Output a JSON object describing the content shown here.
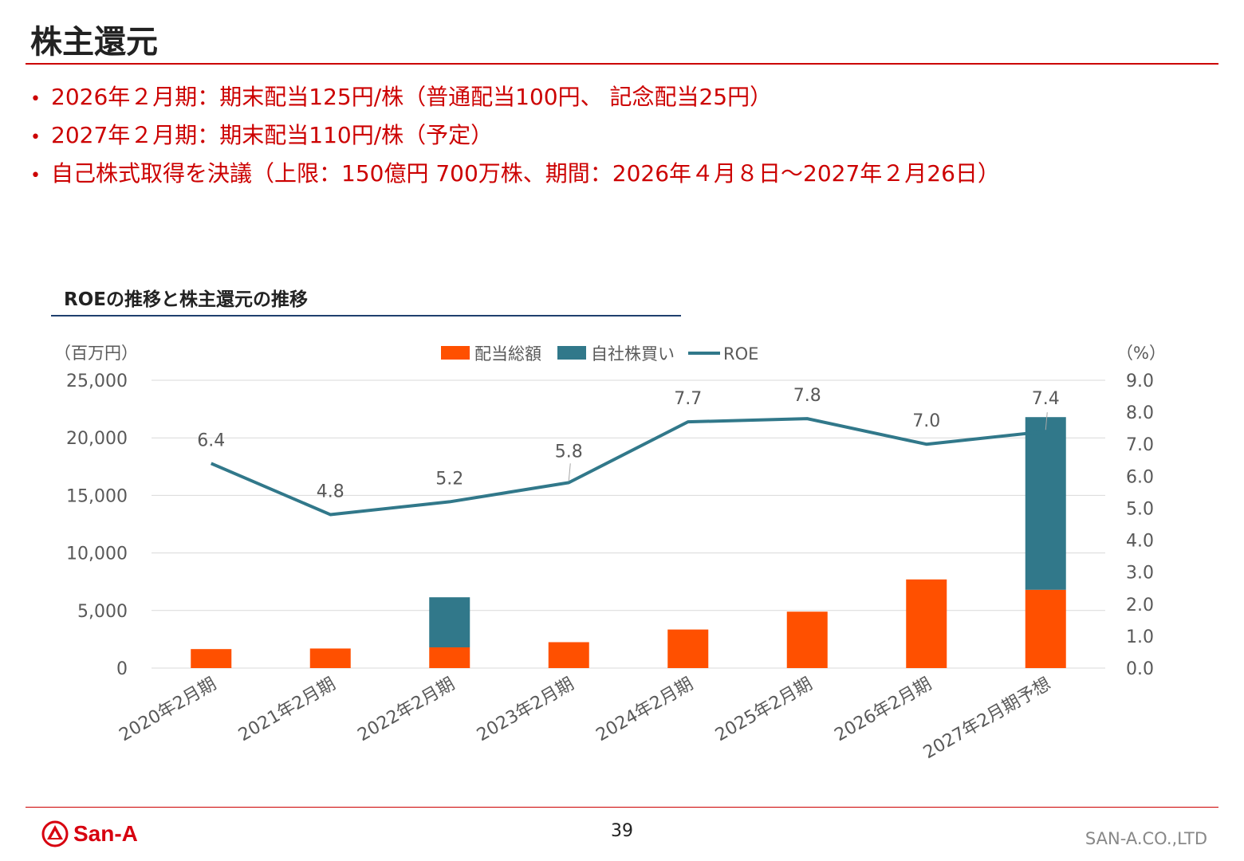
{
  "page": {
    "title": "株主還元",
    "bullets": [
      "2026年２月期：期末配当125円/株（普通配当100円、 記念配当25円）",
      "2027年２月期：期末配当110円/株（予定）",
      "自己株式取得を決議（上限：150億円 700万株、期間：2026年４月８日～2027年２月26日）"
    ],
    "bullet_symbol": "•",
    "page_number": "39",
    "company": "SAN-A.CO.,LTD",
    "logo_text": "San-A"
  },
  "colors": {
    "accent_red": "#cc0000",
    "dividend": "#ff5000",
    "buyback": "#31788a",
    "roe": "#31788a",
    "title_rule": "#1f3f6e"
  },
  "chart_data": {
    "type": "bar",
    "title": "ROEの推移と株主還元の推移",
    "left_unit": "（百万円）",
    "right_unit": "（%）",
    "categories": [
      "2020年2月期",
      "2021年2月期",
      "2022年2月期",
      "2023年2月期",
      "2024年2月期",
      "2025年2月期",
      "2026年2月期",
      "2027年2月期予想"
    ],
    "series": [
      {
        "name": "配当総額",
        "type": "bar",
        "axis": "left",
        "stack": "total",
        "color": "#ff5000",
        "values": [
          1650,
          1700,
          1800,
          2250,
          3350,
          4900,
          7700,
          6800
        ]
      },
      {
        "name": "自社株買い",
        "type": "bar",
        "axis": "left",
        "stack": "total",
        "color": "#31788a",
        "values": [
          0,
          0,
          4350,
          0,
          0,
          0,
          0,
          15000
        ]
      },
      {
        "name": "ROE",
        "type": "line",
        "axis": "right",
        "color": "#31788a",
        "values": [
          6.4,
          4.8,
          5.2,
          5.8,
          7.7,
          7.8,
          7.0,
          7.4
        ],
        "labels": [
          "6.4",
          "4.8",
          "5.2",
          "5.8",
          "7.7",
          "7.8",
          "7.0",
          "7.4"
        ]
      }
    ],
    "y_left": {
      "min": 0,
      "max": 25000,
      "ticks": [
        0,
        5000,
        10000,
        15000,
        20000,
        25000
      ],
      "tick_labels": [
        "0",
        "5,000",
        "10,000",
        "15,000",
        "20,000",
        "25,000"
      ]
    },
    "y_right": {
      "min": 0,
      "max": 9,
      "ticks": [
        0,
        1,
        2,
        3,
        4,
        5,
        6,
        7,
        8,
        9
      ],
      "tick_labels": [
        "0.0",
        "1.0",
        "2.0",
        "3.0",
        "4.0",
        "5.0",
        "6.0",
        "7.0",
        "8.0",
        "9.0"
      ]
    },
    "grid": true,
    "legend": "top-center"
  }
}
